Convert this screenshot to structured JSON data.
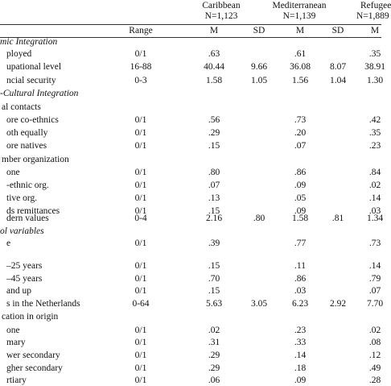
{
  "table": {
    "groups": [
      {
        "name": "Caribbean",
        "n": "N=1,123"
      },
      {
        "name": "Mediterranean",
        "n": "N=1,139"
      },
      {
        "name": "Refugee",
        "n": "N=1,889"
      }
    ],
    "columns": [
      "Range",
      "M",
      "SD",
      "M",
      "SD",
      "M"
    ],
    "rows": [
      {
        "label": "mic Integration",
        "italic": true
      },
      {
        "label": "ployed",
        "range": "0/1",
        "m1": ".63",
        "m2": ".61",
        "m3": ".35"
      },
      {
        "label": "upational level",
        "range": "16-88",
        "m1": "40.44",
        "sd1": "9.66",
        "m2": "36.08",
        "sd2": "8.07",
        "m3": "38.91"
      },
      {
        "label": "ncial security",
        "range": "0-3",
        "m1": "1.58",
        "sd1": "1.05",
        "m2": "1.56",
        "sd2": "1.04",
        "m3": "1.30"
      },
      {
        "label": "-Cultural Integration",
        "italic": true
      },
      {
        "label": "al contacts"
      },
      {
        "label": "ore co-ethnics",
        "range": "0/1",
        "m1": ".56",
        "m2": ".73",
        "m3": ".42"
      },
      {
        "label": "oth equally",
        "range": "0/1",
        "m1": ".29",
        "m2": ".20",
        "m3": ".35"
      },
      {
        "label": "ore natives",
        "range": "0/1",
        "m1": ".15",
        "m2": ".07",
        "m3": ".23"
      },
      {
        "label": "mber organization"
      },
      {
        "label": "one",
        "range": "0/1",
        "m1": ".80",
        "m2": ".86",
        "m3": ".84"
      },
      {
        "label": "-ethnic org.",
        "range": "0/1",
        "m1": ".07",
        "m2": ".09",
        "m3": ".02"
      },
      {
        "label": "tive org.",
        "range": "0/1",
        "m1": ".13",
        "m2": ".05",
        "m3": ".14"
      },
      {
        "label": "ds remittances",
        "range": "0/1",
        "m1": ".15",
        "m2": ".09",
        "m3": ".03"
      },
      {
        "label": "dern values",
        "range": "0-4",
        "m1": "2.16",
        "sd1": ".80",
        "m2": "1.58",
        "sd2": ".81",
        "m3": "1.34"
      },
      {
        "label": "ol variables",
        "italic": true
      },
      {
        "label": "e",
        "range": "0/1",
        "m1": ".39",
        "m2": ".77",
        "m3": ".73"
      },
      {
        "label": "–25 years",
        "range": "0/1",
        "m1": ".15",
        "m2": ".11",
        "m3": ".14"
      },
      {
        "label": "–45 years",
        "range": "0/1",
        "m1": ".70",
        "m2": ".86",
        "m3": ".79"
      },
      {
        "label": "and up",
        "range": "0/1",
        "m1": ".15",
        "m2": ".03",
        "m3": ".07"
      },
      {
        "label": "s in the Netherlands",
        "range": "0-64",
        "m1": "5.63",
        "sd1": "3.05",
        "m2": "6.23",
        "sd2": "2.92",
        "m3": "7.70"
      },
      {
        "label": "cation in origin"
      },
      {
        "label": "one",
        "range": "0/1",
        "m1": ".02",
        "m2": ".23",
        "m3": ".02"
      },
      {
        "label": "mary",
        "range": "0/1",
        "m1": ".31",
        "m2": ".33",
        "m3": ".08"
      },
      {
        "label": "wer secondary",
        "range": "0/1",
        "m1": ".29",
        "m2": ".14",
        "m3": ".12"
      },
      {
        "label": "gher secondary",
        "range": "0/1",
        "m1": ".29",
        "m2": ".18",
        "m3": ".49"
      },
      {
        "label": "rtiary",
        "range": "0/1",
        "m1": ".06",
        "m2": ".09",
        "m3": ".28"
      }
    ]
  }
}
